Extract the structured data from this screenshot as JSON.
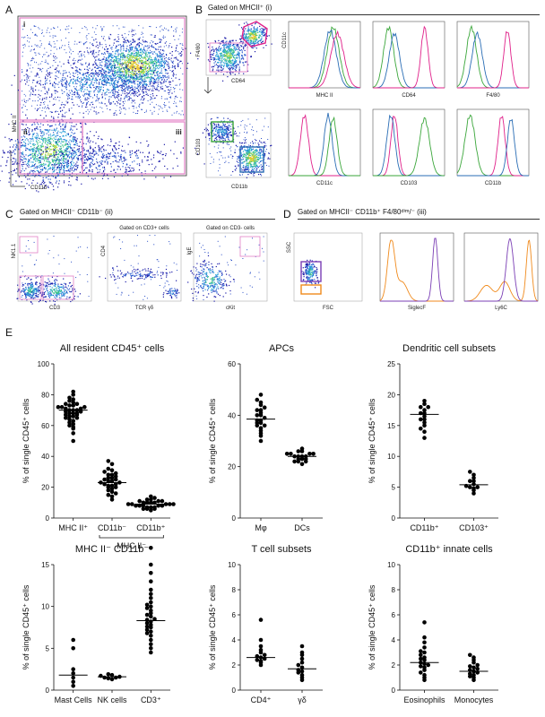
{
  "panels": {
    "A": {
      "letter": "A",
      "gates": [
        "i",
        "ii",
        "iii"
      ],
      "ylabel": "MHC II",
      "xlabel": "CD11b"
    },
    "B": {
      "letter": "B",
      "title": "Gated on MHCII⁺ (i)",
      "dot_labels": [
        {
          "y": "F4/80",
          "x": "CD64"
        },
        {
          "y": "CD103",
          "x": "CD11b"
        }
      ],
      "hist_top": [
        "MHC II",
        "CD64",
        "F4/80"
      ],
      "hist_top_ylabel": "CD11c",
      "hist_bottom": [
        "CD11c",
        "CD103",
        "CD11b"
      ]
    },
    "C": {
      "letter": "C",
      "title": "Gated on MHCII⁻ CD11b⁻ (ii)",
      "plots": [
        {
          "title": "",
          "y": "NK1.1",
          "x": "CD3"
        },
        {
          "title": "Gated on CD3+ cells",
          "y": "CD4",
          "x": "TCR γδ"
        },
        {
          "title": "Gated on CD3- cells",
          "y": "IgE",
          "x": "cKit"
        }
      ]
    },
    "D": {
      "letter": "D",
      "title": "Gated on MHCII⁻ CD11b⁺ F4/80ᵈⁱᵐ/⁻ (iii)",
      "plots": [
        {
          "y": "SSC",
          "x": "FSC"
        },
        {
          "x": "SiglecF"
        },
        {
          "x": "Ly6C"
        }
      ]
    },
    "E": {
      "letter": "E"
    }
  },
  "colors": {
    "magenta": "#e0218a",
    "green": "#3aa63a",
    "blue": "#2a6db5",
    "orange": "#f08a1c",
    "purple": "#7b3fb5",
    "gate_pink": "#e27fc6"
  },
  "chart_data": [
    {
      "type": "scatter",
      "title": "All resident CD45⁺ cells",
      "ylabel": "% of single CD45⁺ cells",
      "ylim": [
        0,
        100
      ],
      "yticks": [
        0,
        20,
        40,
        60,
        80,
        100
      ],
      "categories": [
        "MHC II⁺",
        "CD11b⁻",
        "CD11b⁺"
      ],
      "group_label": "MHC II⁻",
      "series": [
        {
          "values": [
            70,
            72,
            68,
            65,
            74,
            78,
            80,
            60,
            62,
            66,
            71,
            69,
            73,
            75,
            67,
            58,
            55,
            50,
            82,
            76,
            63,
            64,
            70,
            72,
            68,
            66,
            74,
            71,
            69,
            65,
            77,
            61,
            59,
            73,
            68,
            70,
            67,
            72
          ],
          "mean": 70
        },
        {
          "values": [
            24,
            26,
            22,
            20,
            28,
            30,
            18,
            16,
            14,
            25,
            23,
            21,
            27,
            32,
            35,
            37,
            12,
            19,
            24,
            26,
            22,
            20,
            28,
            15,
            23,
            25,
            21,
            29,
            31,
            17
          ],
          "mean": 23
        },
        {
          "values": [
            9,
            10,
            8,
            7,
            11,
            12,
            6,
            5,
            9,
            10,
            8,
            13,
            14,
            7,
            6,
            9,
            10,
            8,
            11,
            7,
            9,
            12,
            8,
            10,
            6,
            9,
            11,
            8
          ],
          "mean": 9
        }
      ]
    },
    {
      "type": "scatter",
      "title": "APCs",
      "ylabel": "% of single CD45⁺ cells",
      "ylim": [
        0,
        60
      ],
      "yticks": [
        0,
        20,
        40,
        60
      ],
      "categories": [
        "Mφ",
        "DCs"
      ],
      "series": [
        {
          "values": [
            38,
            40,
            42,
            36,
            35,
            44,
            46,
            48,
            33,
            30,
            37,
            39,
            41,
            43,
            38,
            36,
            34,
            45,
            40,
            32,
            37,
            42
          ],
          "mean": 38.5
        },
        {
          "values": [
            24,
            25,
            23,
            22,
            26,
            27,
            24,
            23,
            25,
            21,
            22,
            24,
            26,
            25,
            23,
            24,
            22,
            25
          ],
          "mean": 24
        }
      ]
    },
    {
      "type": "scatter",
      "title": "Dendritic cell subsets",
      "ylabel": "% of single CD45⁺ cells",
      "ylim": [
        0,
        25
      ],
      "yticks": [
        0,
        5,
        10,
        15,
        20,
        25
      ],
      "categories": [
        "CD11b⁺",
        "CD103⁺"
      ],
      "series": [
        {
          "values": [
            16.5,
            17,
            18,
            19,
            15,
            14,
            13,
            16,
            17.5,
            18.5,
            15.5,
            16,
            17,
            14.5,
            18
          ],
          "mean": 16.8
        },
        {
          "values": [
            5,
            6,
            4.5,
            7,
            6.5,
            5.5,
            4,
            6,
            5,
            7.5,
            4.8,
            5.2
          ],
          "mean": 5.4
        }
      ]
    },
    {
      "type": "scatter",
      "title": "MHC II⁻ CD11b⁻",
      "ylabel": "% of single CD45⁺ cells",
      "ylim": [
        0,
        15
      ],
      "yticks": [
        0,
        5,
        10,
        15
      ],
      "categories": [
        "Mast Cells",
        "NK cells",
        "CD3⁺"
      ],
      "series": [
        {
          "values": [
            6,
            5,
            2,
            1.5,
            1,
            0.5,
            2.5
          ],
          "mean": 1.8
        },
        {
          "values": [
            1.8,
            1.6,
            1.5,
            1.4,
            1.7,
            1.9,
            1.3,
            1.5
          ],
          "mean": 1.6
        },
        {
          "values": [
            17,
            15,
            14,
            13,
            12,
            11.5,
            11,
            10.5,
            10,
            9.8,
            9.5,
            9,
            8.8,
            8.5,
            8.2,
            8,
            7.8,
            7.5,
            7.2,
            7,
            6.5,
            6,
            5.5,
            5,
            4.5,
            9.2,
            8.4,
            7.6,
            10.2,
            6.8
          ],
          "mean": 8.3
        }
      ]
    },
    {
      "type": "scatter",
      "title": "T cell subsets",
      "ylabel": "% of single CD45⁺ cells",
      "ylim": [
        0,
        10
      ],
      "yticks": [
        0,
        2,
        4,
        6,
        8,
        10
      ],
      "categories": [
        "CD4⁺",
        "γδ"
      ],
      "series": [
        {
          "values": [
            5.6,
            4,
            3.5,
            3,
            2.8,
            2.6,
            2.5,
            2.4,
            2.2,
            2,
            3.2,
            2.7,
            2.3
          ],
          "mean": 2.6
        },
        {
          "values": [
            3.5,
            3,
            2.8,
            2.5,
            2,
            1.8,
            1.6,
            1.5,
            1.2,
            1,
            0.8,
            2.2,
            1.4
          ],
          "mean": 1.7
        }
      ]
    },
    {
      "type": "scatter",
      "title": "CD11b⁺ innate cells",
      "ylabel": "% of single CD45⁺ cells",
      "ylim": [
        0,
        10
      ],
      "yticks": [
        0,
        2,
        4,
        6,
        8,
        10
      ],
      "categories": [
        "Eosinophils",
        "Monocytes"
      ],
      "series": [
        {
          "values": [
            5.4,
            4.2,
            3.8,
            3.4,
            3,
            2.8,
            2.6,
            2.4,
            2.2,
            2,
            1.8,
            1.6,
            1.4,
            1.2,
            1,
            0.8,
            2.5,
            2.1,
            1.9,
            3.1
          ],
          "mean": 2.2
        },
        {
          "values": [
            2.6,
            2.4,
            2.2,
            2,
            1.8,
            1.6,
            1.5,
            1.4,
            1.3,
            1.2,
            1,
            0.8,
            1.7,
            1.1,
            2.8,
            1.9
          ],
          "mean": 1.5
        }
      ]
    }
  ]
}
